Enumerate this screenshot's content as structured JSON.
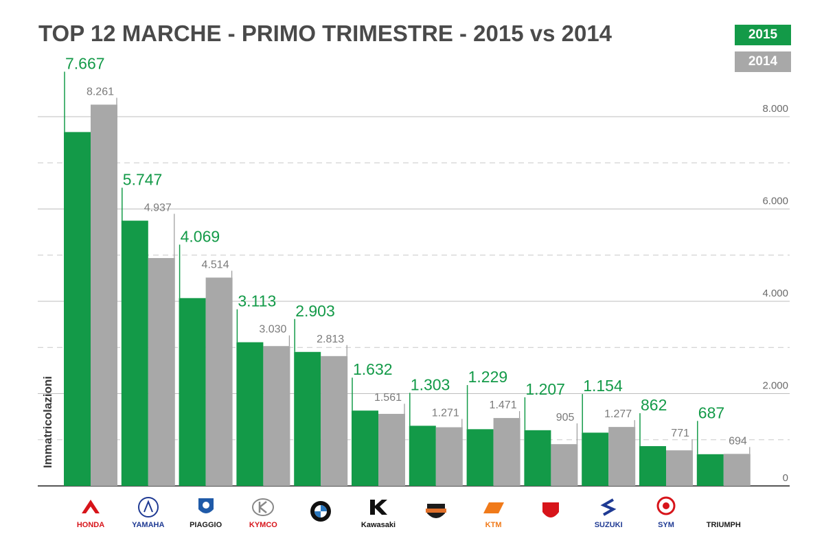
{
  "chart_data": {
    "type": "bar",
    "title": "TOP 12 MARCHE - PRIMO TRIMESTRE - 2015 vs 2014",
    "ylabel": "Immatricolazioni",
    "xlabel": "",
    "ylim": [
      0,
      8000
    ],
    "yticks": [
      0,
      2000,
      4000,
      6000,
      8000
    ],
    "ytick_labels": [
      "0",
      "2.000",
      "4.000",
      "6.000",
      "8.000"
    ],
    "grid": true,
    "legend": "top-right",
    "categories": [
      "HONDA",
      "YAMAHA",
      "PIAGGIO",
      "KYMCO",
      "BMW",
      "Kawasaki",
      "HARLEY-DAVIDSON",
      "KTM",
      "DUCATI",
      "SUZUKI",
      "SYM",
      "TRIUMPH"
    ],
    "series": [
      {
        "name": "2015",
        "color": "#139a48",
        "values": [
          7667,
          5747,
          4069,
          3113,
          2903,
          1632,
          1303,
          1229,
          1207,
          1154,
          862,
          687
        ],
        "labels": [
          "7.667",
          "5.747",
          "4.069",
          "3.113",
          "2.903",
          "1.632",
          "1.303",
          "1.229",
          "1.207",
          "1.154",
          "862",
          "687"
        ]
      },
      {
        "name": "2014",
        "color": "#a8a8a8",
        "values": [
          8261,
          4937,
          4514,
          3030,
          2813,
          1561,
          1271,
          1471,
          905,
          1277,
          771,
          694
        ],
        "labels": [
          "8.261",
          "4.937",
          "4.514",
          "3.030",
          "2.813",
          "1.561",
          "1.271",
          "1.471",
          "905",
          "1.277",
          "771",
          "694"
        ]
      }
    ]
  },
  "brands": [
    {
      "label": "HONDA",
      "color": "#d7141a",
      "icon": "honda-wing-icon"
    },
    {
      "label": "YAMAHA",
      "color": "#1f3a93",
      "icon": "yamaha-tuning-fork-icon"
    },
    {
      "label": "PIAGGIO",
      "color": "#1c1c1c",
      "icon": "piaggio-shield-icon"
    },
    {
      "label": "KYMCO",
      "color": "#d7141a",
      "icon": "kymco-k-icon"
    },
    {
      "label": "",
      "color": "#1c1c1c",
      "icon": "bmw-roundel-icon"
    },
    {
      "label": "Kawasaki",
      "color": "#111111",
      "icon": "kawasaki-k-icon"
    },
    {
      "label": "",
      "color": "#e0702a",
      "icon": "harley-davidson-shield-icon"
    },
    {
      "label": "KTM",
      "color": "#f07a1a",
      "icon": "ktm-wordmark-icon"
    },
    {
      "label": "",
      "color": "#d7141a",
      "icon": "ducati-shield-icon"
    },
    {
      "label": "SUZUKI",
      "color": "#1f3a93",
      "icon": "suzuki-s-icon"
    },
    {
      "label": "SYM",
      "color": "#1f3a93",
      "icon": "sym-emblem-icon"
    },
    {
      "label": "TRIUMPH",
      "color": "#1c1c1c",
      "icon": "triumph-wordmark-icon"
    }
  ],
  "legend": {
    "y2015": "2015",
    "y2014": "2014"
  }
}
